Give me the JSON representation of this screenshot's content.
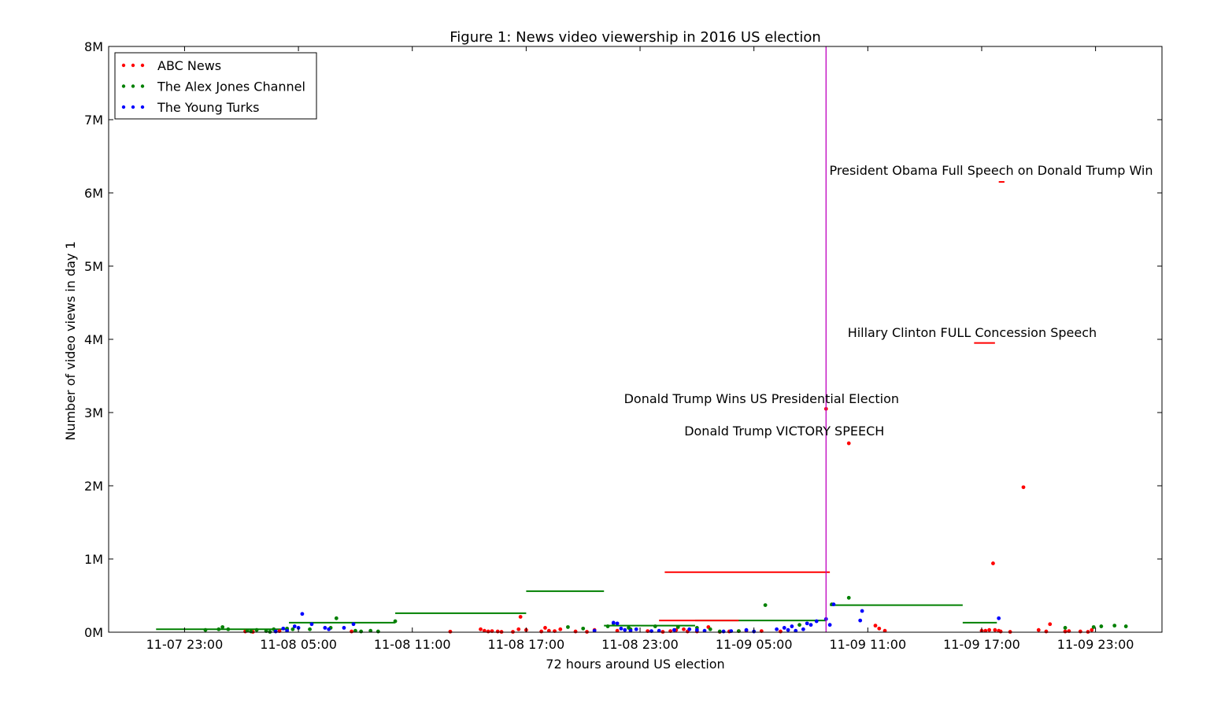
{
  "chart_data": {
    "type": "scatter",
    "title": "Figure 1: News video viewership in 2016 US election",
    "xlabel": "72 hours around US election",
    "ylabel": "Number of video views in day 1",
    "x_ticks": [
      "11-07 23:00",
      "11-08 05:00",
      "11-08 11:00",
      "11-08 17:00",
      "11-08 23:00",
      "11-09 05:00",
      "11-09 11:00",
      "11-09 17:00",
      "11-09 23:00"
    ],
    "x_unit": "hours since 11-07 00:00",
    "x_ticks_hours": [
      23,
      29,
      35,
      41,
      47,
      53,
      59,
      65,
      71
    ],
    "xlim": [
      19,
      74.5
    ],
    "y_ticks": [
      "0M",
      "1M",
      "2M",
      "3M",
      "4M",
      "5M",
      "6M",
      "7M",
      "8M"
    ],
    "ylim": [
      0,
      8000000
    ],
    "grid": false,
    "legend_position": "top-left",
    "vline": {
      "x": 56.8,
      "color": "#bf00bf"
    },
    "series": [
      {
        "name": "ABC News",
        "color": "#ff0000",
        "points": [
          [
            26.2,
            10000
          ],
          [
            26.6,
            5000
          ],
          [
            28.0,
            15000
          ],
          [
            31.8,
            10000
          ],
          [
            37.0,
            8000
          ],
          [
            38.6,
            40000
          ],
          [
            38.8,
            20000
          ],
          [
            39.0,
            10000
          ],
          [
            39.2,
            15000
          ],
          [
            39.5,
            10000
          ],
          [
            39.7,
            5000
          ],
          [
            40.3,
            5000
          ],
          [
            40.6,
            40000
          ],
          [
            40.7,
            210000
          ],
          [
            41.0,
            30000
          ],
          [
            41.8,
            10000
          ],
          [
            42.0,
            60000
          ],
          [
            42.2,
            20000
          ],
          [
            42.5,
            15000
          ],
          [
            42.8,
            40000
          ],
          [
            43.6,
            10000
          ],
          [
            44.2,
            5000
          ],
          [
            44.6,
            30000
          ],
          [
            45.8,
            20000
          ],
          [
            47.4,
            15000
          ],
          [
            48.2,
            5000
          ],
          [
            48.6,
            15000
          ],
          [
            48.9,
            30000
          ],
          [
            49.3,
            40000
          ],
          [
            49.5,
            10000
          ],
          [
            50.0,
            10000
          ],
          [
            50.6,
            70000
          ],
          [
            51.2,
            5000
          ],
          [
            51.7,
            10000
          ],
          [
            52.2,
            15000
          ],
          [
            52.6,
            20000
          ],
          [
            53.4,
            15000
          ],
          [
            54.4,
            10000
          ],
          [
            56.8,
            3050000
          ],
          [
            58.0,
            2580000
          ],
          [
            59.4,
            90000
          ],
          [
            59.6,
            50000
          ],
          [
            59.9,
            20000
          ],
          [
            65.0,
            20000
          ],
          [
            65.2,
            20000
          ],
          [
            65.4,
            30000
          ],
          [
            65.6,
            940000
          ],
          [
            65.7,
            30000
          ],
          [
            65.9,
            20000
          ],
          [
            66.0,
            10000
          ],
          [
            66.5,
            5000
          ],
          [
            67.2,
            1980000
          ],
          [
            68.0,
            30000
          ],
          [
            68.4,
            10000
          ],
          [
            68.6,
            110000
          ],
          [
            69.4,
            10000
          ],
          [
            69.6,
            15000
          ],
          [
            70.2,
            10000
          ],
          [
            70.6,
            5000
          ],
          [
            70.8,
            30000
          ]
        ]
      },
      {
        "name": "The Alex Jones Channel",
        "color": "#008000",
        "points": [
          [
            24.1,
            30000
          ],
          [
            24.8,
            40000
          ],
          [
            25.0,
            70000
          ],
          [
            25.3,
            40000
          ],
          [
            26.3,
            20000
          ],
          [
            26.5,
            10000
          ],
          [
            26.8,
            30000
          ],
          [
            27.3,
            15000
          ],
          [
            27.5,
            5000
          ],
          [
            27.7,
            40000
          ],
          [
            28.4,
            50000
          ],
          [
            28.7,
            40000
          ],
          [
            29.6,
            40000
          ],
          [
            30.7,
            60000
          ],
          [
            31.0,
            190000
          ],
          [
            32.0,
            20000
          ],
          [
            32.3,
            10000
          ],
          [
            32.8,
            20000
          ],
          [
            33.2,
            10000
          ],
          [
            34.1,
            150000
          ],
          [
            43.2,
            70000
          ],
          [
            44.0,
            50000
          ],
          [
            45.3,
            80000
          ],
          [
            45.6,
            120000
          ],
          [
            46.4,
            60000
          ],
          [
            46.5,
            40000
          ],
          [
            47.8,
            80000
          ],
          [
            49.0,
            70000
          ],
          [
            50.0,
            60000
          ],
          [
            50.7,
            40000
          ],
          [
            51.2,
            10000
          ],
          [
            52.2,
            15000
          ],
          [
            53.6,
            370000
          ],
          [
            55.4,
            100000
          ],
          [
            57.1,
            380000
          ],
          [
            58.0,
            470000
          ],
          [
            69.4,
            60000
          ],
          [
            70.9,
            70000
          ],
          [
            71.3,
            80000
          ],
          [
            72.0,
            90000
          ],
          [
            72.6,
            80000
          ]
        ]
      },
      {
        "name": "The Young Turks",
        "color": "#0000ff",
        "points": [
          [
            27.8,
            10000
          ],
          [
            28.2,
            50000
          ],
          [
            28.4,
            20000
          ],
          [
            28.8,
            80000
          ],
          [
            29.0,
            60000
          ],
          [
            29.2,
            250000
          ],
          [
            29.7,
            110000
          ],
          [
            30.4,
            60000
          ],
          [
            30.6,
            40000
          ],
          [
            31.4,
            60000
          ],
          [
            31.9,
            110000
          ],
          [
            44.6,
            20000
          ],
          [
            45.6,
            130000
          ],
          [
            45.8,
            120000
          ],
          [
            46.0,
            50000
          ],
          [
            46.2,
            30000
          ],
          [
            46.5,
            20000
          ],
          [
            46.8,
            40000
          ],
          [
            47.6,
            15000
          ],
          [
            48.0,
            20000
          ],
          [
            48.8,
            30000
          ],
          [
            49.6,
            40000
          ],
          [
            50.0,
            30000
          ],
          [
            50.4,
            20000
          ],
          [
            51.4,
            10000
          ],
          [
            51.8,
            15000
          ],
          [
            52.6,
            30000
          ],
          [
            53.0,
            10000
          ],
          [
            54.2,
            40000
          ],
          [
            54.6,
            60000
          ],
          [
            54.8,
            30000
          ],
          [
            55.0,
            80000
          ],
          [
            55.2,
            20000
          ],
          [
            55.6,
            40000
          ],
          [
            55.8,
            120000
          ],
          [
            56.0,
            100000
          ],
          [
            56.3,
            150000
          ],
          [
            56.8,
            180000
          ],
          [
            57.0,
            100000
          ],
          [
            57.2,
            380000
          ],
          [
            58.6,
            160000
          ],
          [
            58.7,
            290000
          ],
          [
            65.9,
            190000
          ]
        ]
      }
    ],
    "hlines": [
      {
        "x0": 21.5,
        "x1": 28.5,
        "y": 40000,
        "color": "#008000"
      },
      {
        "x0": 28.5,
        "x1": 34.1,
        "y": 130000,
        "color": "#008000"
      },
      {
        "x0": 34.1,
        "x1": 41.0,
        "y": 260000,
        "color": "#008000"
      },
      {
        "x0": 41.0,
        "x1": 45.1,
        "y": 560000,
        "color": "#008000"
      },
      {
        "x0": 45.1,
        "x1": 49.9,
        "y": 90000,
        "color": "#008000"
      },
      {
        "x0": 49.9,
        "x1": 56.8,
        "y": 160000,
        "color": "#008000"
      },
      {
        "x0": 57.0,
        "x1": 64.0,
        "y": 370000,
        "color": "#008000"
      },
      {
        "x0": 64.0,
        "x1": 65.8,
        "y": 130000,
        "color": "#008000"
      },
      {
        "x0": 48.0,
        "x1": 52.2,
        "y": 160000,
        "color": "#ff0000"
      },
      {
        "x0": 48.3,
        "x1": 57.0,
        "y": 820000,
        "color": "#ff0000"
      },
      {
        "x0": 64.6,
        "x1": 65.7,
        "y": 3950000,
        "color": "#ff0000"
      },
      {
        "x0": 65.9,
        "x1": 66.2,
        "y": 6150000,
        "color": "#ff0000"
      }
    ],
    "annotations": [
      {
        "text": "President Obama Full Speech on Donald Trump Win",
        "x": 65.5,
        "y": 6250000
      },
      {
        "text": "Hillary Clinton FULL Concession Speech",
        "x": 64.5,
        "y": 4030000
      },
      {
        "text": "Donald Trump Wins US Presidential Election",
        "x": 53.4,
        "y": 3130000
      },
      {
        "text": "Donald Trump VICTORY SPEECH",
        "x": 54.6,
        "y": 2690000
      }
    ]
  }
}
